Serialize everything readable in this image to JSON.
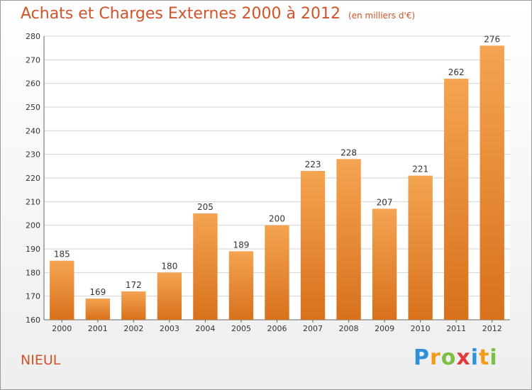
{
  "header": {
    "title": "Achats et Charges Externes 2000 à 2012",
    "unit": "(en milliers d'€)"
  },
  "footer": {
    "place": "NIEUL",
    "brand": "Proxiti",
    "brand_letters": [
      "P",
      "r",
      "o",
      "x",
      "i",
      "t",
      "i"
    ],
    "brand_colors": [
      "#2f8fd8",
      "#f29a1d",
      "#7bc043",
      "#e23b3b",
      "#2f8fd8",
      "#f29a1d",
      "#7bc043"
    ]
  },
  "colors": {
    "bar_top": "#f4a452",
    "bar_bottom": "#d8711c",
    "title": "#d0542a",
    "grid": "#d2d2d2"
  },
  "chart_data": {
    "type": "bar",
    "title": "Achats et Charges Externes 2000 à 2012",
    "categories": [
      "2000",
      "2001",
      "2002",
      "2003",
      "2004",
      "2005",
      "2006",
      "2007",
      "2008",
      "2009",
      "2010",
      "2011",
      "2012"
    ],
    "values": [
      185,
      169,
      172,
      180,
      205,
      189,
      200,
      223,
      228,
      207,
      221,
      262,
      276
    ],
    "ylim": [
      160,
      280
    ],
    "yticks": [
      160,
      170,
      180,
      190,
      200,
      210,
      220,
      230,
      240,
      250,
      260,
      270,
      280
    ],
    "grid": true,
    "xlabel": "",
    "ylabel": ""
  }
}
